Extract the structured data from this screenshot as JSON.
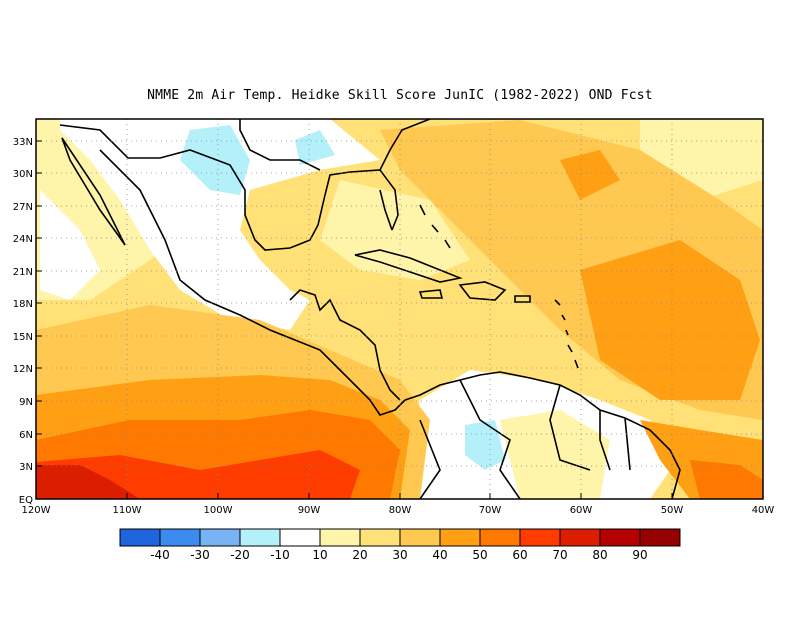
{
  "title": "NMME  2m Air Temp. Heidke Skill Score JunIC (1982-2022) OND Fcst",
  "map": {
    "lat_labels": [
      "33N",
      "30N",
      "27N",
      "24N",
      "21N",
      "18N",
      "15N",
      "12N",
      "9N",
      "6N",
      "3N",
      "EQ"
    ],
    "lon_labels": [
      "120W",
      "110W",
      "100W",
      "90W",
      "80W",
      "70W",
      "60W",
      "50W",
      "40W"
    ],
    "region": {
      "lon_min": -120,
      "lon_max": -40,
      "lat_min": 0,
      "lat_max": 35
    },
    "grid": "dotted"
  },
  "colorbar": {
    "labels": [
      "-40",
      "-30",
      "-20",
      "-10",
      "10",
      "20",
      "30",
      "40",
      "50",
      "60",
      "70",
      "80",
      "90"
    ],
    "colors": [
      "#1e64dc",
      "#3c8cf0",
      "#78b4f5",
      "#b4f0fa",
      "#ffffff",
      "#fff5aa",
      "#ffe178",
      "#ffc850",
      "#ffa014",
      "#ff7800",
      "#ff3c00",
      "#dc1e00",
      "#b40000",
      "#960000"
    ]
  }
}
